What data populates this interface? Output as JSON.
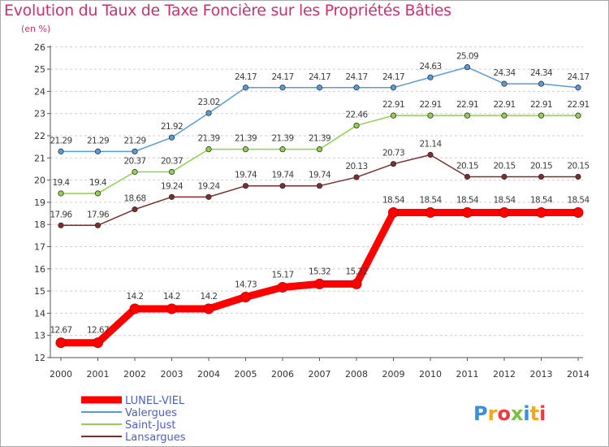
{
  "page": {
    "title": "Evolution du Taux de Taxe Foncière sur les Propriétés Bâties",
    "subtitle": "(en %)",
    "logo": "Proxiti"
  },
  "chart_data": {
    "type": "line",
    "title": "Evolution du Taux de Taxe Foncière sur les Propriétés Bâties",
    "ylabel": "(en %)",
    "xlabel": "",
    "x": [
      "2000",
      "2001",
      "2002",
      "2003",
      "2004",
      "2005",
      "2006",
      "2007",
      "2008",
      "2009",
      "2010",
      "2011",
      "2012",
      "2013",
      "2014"
    ],
    "ylim": [
      12,
      26
    ],
    "yticks": [
      12,
      13,
      14,
      15,
      16,
      17,
      18,
      19,
      20,
      21,
      22,
      23,
      24,
      25,
      26
    ],
    "grid": "horizontal dashed",
    "series": [
      {
        "name": "LUNEL-VIEL",
        "color": "#ff0000",
        "values": [
          12.67,
          12.67,
          14.2,
          14.2,
          14.2,
          14.73,
          15.17,
          15.32,
          15.32,
          18.54,
          18.54,
          18.54,
          18.54,
          18.54,
          18.54
        ],
        "labels": [
          "12.67",
          "12.67",
          "14.2",
          "14.2",
          "14.2",
          "14.73",
          "15.17",
          "15.32",
          "15.32",
          "18.54",
          "18.54",
          "18.54",
          "18.54",
          "18.54",
          "18.54"
        ]
      },
      {
        "name": "Valergues",
        "color": "#5b9bd5",
        "values": [
          21.29,
          21.29,
          21.29,
          21.92,
          23.02,
          24.17,
          24.17,
          24.17,
          24.17,
          24.17,
          24.63,
          25.09,
          24.34,
          24.34,
          24.17
        ],
        "labels": [
          "21.29",
          "21.29",
          "21.29",
          "21.92",
          "23.02",
          "24.17",
          "24.17",
          "24.17",
          "24.17",
          "24.17",
          "24.63",
          "25.09",
          "24.34",
          "24.34",
          "24.17"
        ]
      },
      {
        "name": "Saint-Just",
        "color": "#92d050",
        "values": [
          19.4,
          19.4,
          20.37,
          20.37,
          21.39,
          21.39,
          21.39,
          21.39,
          22.46,
          22.91,
          22.91,
          22.91,
          22.91,
          22.91,
          22.91
        ],
        "labels": [
          "19.4",
          "19.4",
          "20.37",
          "20.37",
          "21.39",
          "21.39",
          "21.39",
          "21.39",
          "22.46",
          "22.91",
          "22.91",
          "22.91",
          "22.91",
          "22.91",
          "22.91"
        ]
      },
      {
        "name": "Lansargues",
        "color": "#7b2e2e",
        "values": [
          17.96,
          17.96,
          18.68,
          19.24,
          19.24,
          19.74,
          19.74,
          19.74,
          20.13,
          20.73,
          21.14,
          20.15,
          20.15,
          20.15,
          20.15
        ],
        "labels": [
          "17.96",
          "17.96",
          "18.68",
          "19.24",
          "19.24",
          "19.74",
          "19.74",
          "19.74",
          "20.13",
          "20.73",
          "21.14",
          "20.15",
          "20.15",
          "20.15",
          "20.15"
        ]
      }
    ],
    "legend_position": "bottom-left"
  }
}
